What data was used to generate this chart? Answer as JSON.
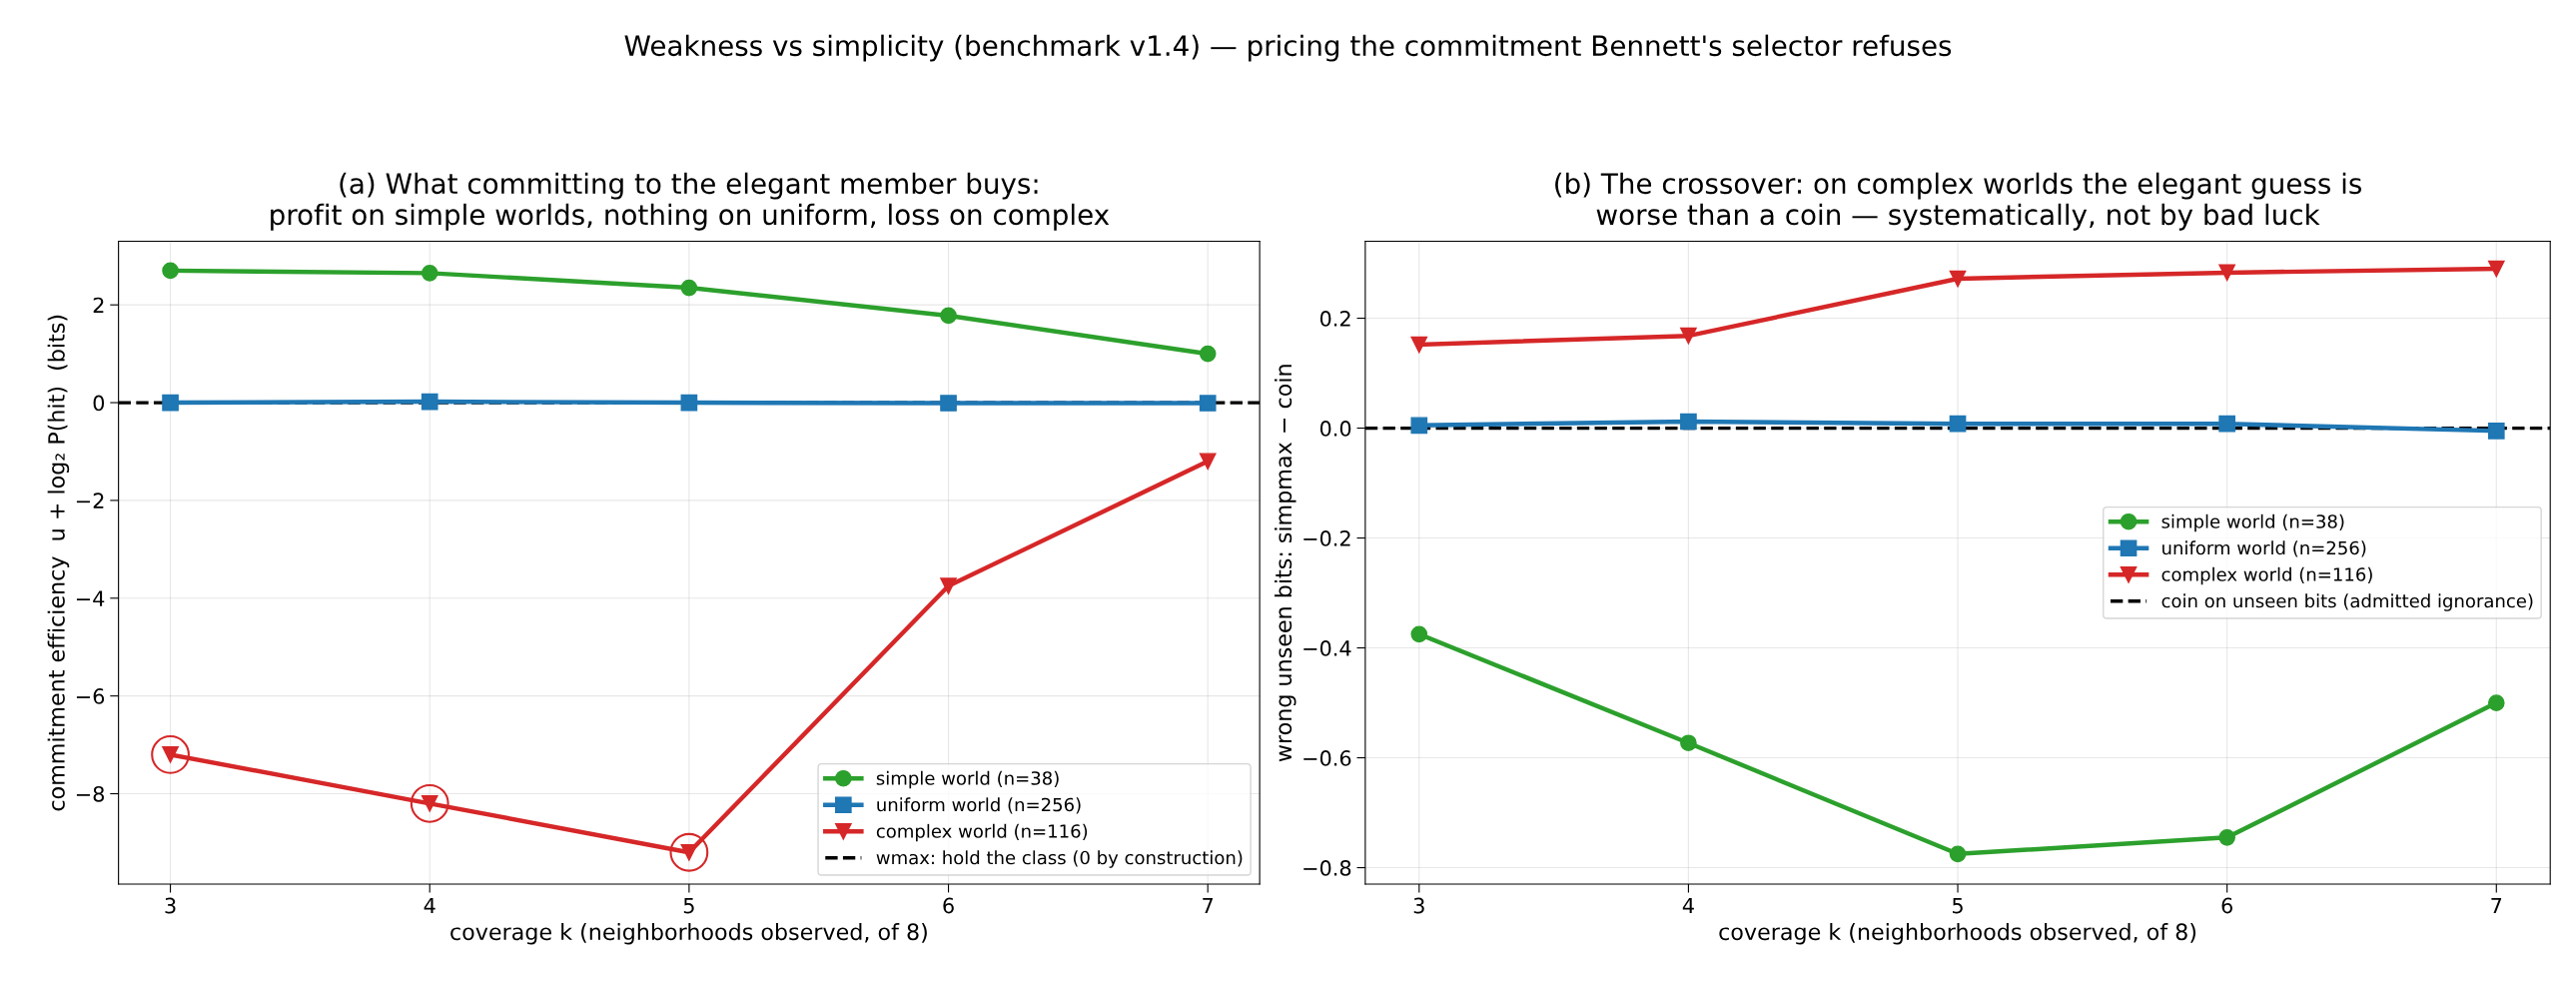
{
  "chart_data": [
    {
      "type": "line",
      "annotations": [
        "Weakness vs simplicity (benchmark v1.4) — pricing the commitment Bennett's selector refuses"
      ],
      "title": "(a) What committing to the elegant member buys:\nprofit on simple worlds, nothing on uniform, loss on complex",
      "xlabel": "coverage k (neighborhoods observed, of 8)",
      "ylabel": "commitment efficiency  u + log₂ P(hit)  (bits)",
      "x": [
        3,
        4,
        5,
        6,
        7
      ],
      "xlim": [
        2.8,
        7.2
      ],
      "xticks": [
        3,
        4,
        5,
        6,
        7
      ],
      "ylim": [
        -9.85,
        3.3
      ],
      "yticks": [
        {
          "value": -8,
          "label": "−8"
        },
        {
          "value": -6,
          "label": "−6"
        },
        {
          "value": -4,
          "label": "−4"
        },
        {
          "value": -2,
          "label": "−2"
        },
        0,
        2
      ],
      "grid": true,
      "legend": "lower right",
      "series": [
        {
          "name": "simple world (n=38)",
          "color": "#2ca02c",
          "marker": "circle",
          "values": [
            2.7,
            2.65,
            2.35,
            1.78,
            1.0
          ]
        },
        {
          "name": "uniform world (n=256)",
          "color": "#1f77b4",
          "marker": "square",
          "values": [
            0.0,
            0.02,
            0.0,
            -0.01,
            -0.01
          ]
        },
        {
          "name": "complex world (n=116)",
          "color": "#d62728",
          "marker": "triangle",
          "values": [
            -7.2,
            -8.2,
            -9.2,
            -3.75,
            -1.2
          ]
        },
        {
          "type": "scatter",
          "color": "#d62728",
          "marker": "circle",
          "values": [
            -7.2,
            -8.2,
            -9.2,
            null,
            null
          ]
        }
      ],
      "ref_lines": [
        {
          "axis": "y",
          "value": 0,
          "label": "wmax: hold the class (0 by construction)",
          "color": "#000000",
          "line_style": "dashed"
        }
      ]
    },
    {
      "type": "line",
      "title": "(b) The crossover: on complex worlds the elegant guess is\nworse than a coin — systematically, not by bad luck",
      "xlabel": "coverage k (neighborhoods observed, of 8)",
      "ylabel": "wrong unseen bits: simpmax − coin",
      "x": [
        3,
        4,
        5,
        6,
        7
      ],
      "xlim": [
        2.8,
        7.2
      ],
      "xticks": [
        3,
        4,
        5,
        6,
        7
      ],
      "ylim": [
        -0.83,
        0.34
      ],
      "yticks": [
        {
          "value": -0.8,
          "label": "−0.8"
        },
        {
          "value": -0.6,
          "label": "−0.6"
        },
        {
          "value": -0.4,
          "label": "−0.4"
        },
        {
          "value": -0.2,
          "label": "−0.2"
        },
        {
          "value": 0,
          "label": "0.0"
        },
        {
          "value": 0.2,
          "label": "0.2"
        }
      ],
      "grid": true,
      "legend": "center right",
      "series": [
        {
          "name": "simple world (n=38)",
          "color": "#2ca02c",
          "marker": "circle",
          "values": [
            -0.375,
            -0.573,
            -0.775,
            -0.745,
            -0.5
          ]
        },
        {
          "name": "uniform world (n=256)",
          "color": "#1f77b4",
          "marker": "square",
          "values": [
            0.005,
            0.012,
            0.008,
            0.008,
            -0.005
          ]
        },
        {
          "name": "complex world (n=116)",
          "color": "#d62728",
          "marker": "triangle",
          "values": [
            0.152,
            0.168,
            0.272,
            0.283,
            0.29
          ]
        }
      ],
      "ref_lines": [
        {
          "axis": "y",
          "value": 0,
          "label": "coin on unseen bits (admitted ignorance)",
          "color": "#000000",
          "line_style": "dashed"
        }
      ]
    }
  ]
}
